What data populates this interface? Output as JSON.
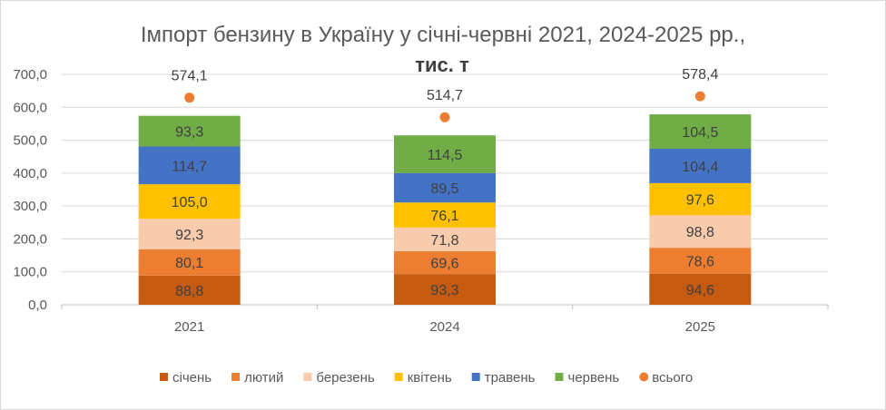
{
  "chart_data": {
    "type": "bar",
    "stacked": true,
    "title": "Імпорт бензину в Україну у січні-червні 2021, 2024-2025 рр.,",
    "subtitle": "тис. т",
    "categories": [
      "2021",
      "2024",
      "2025"
    ],
    "series": [
      {
        "name": "січень",
        "color": "#c55a11",
        "values": [
          88.8,
          93.3,
          94.6
        ]
      },
      {
        "name": "лютий",
        "color": "#ed7d31",
        "values": [
          80.1,
          69.6,
          78.6
        ]
      },
      {
        "name": "березень",
        "color": "#f8cbad",
        "values": [
          92.3,
          71.8,
          98.8
        ]
      },
      {
        "name": "квітень",
        "color": "#ffc000",
        "values": [
          105.0,
          76.1,
          97.6
        ]
      },
      {
        "name": "травень",
        "color": "#4472c4",
        "values": [
          114.7,
          89.5,
          104.4
        ]
      },
      {
        "name": "червень",
        "color": "#70ad47",
        "values": [
          93.3,
          114.5,
          104.5
        ]
      }
    ],
    "totals": {
      "name": "всього",
      "type": "scatter",
      "color": "#ed7d31",
      "values": [
        574.1,
        514.7,
        578.4
      ],
      "labels": [
        "574,1",
        "514,7",
        "578,4"
      ]
    },
    "ylim": [
      0,
      700
    ],
    "yticks": [
      "0,0",
      "100,0",
      "200,0",
      "300,0",
      "400,0",
      "500,0",
      "600,0",
      "700,0"
    ],
    "grid": true,
    "legend": "bottom",
    "xlabel": "",
    "ylabel": ""
  }
}
